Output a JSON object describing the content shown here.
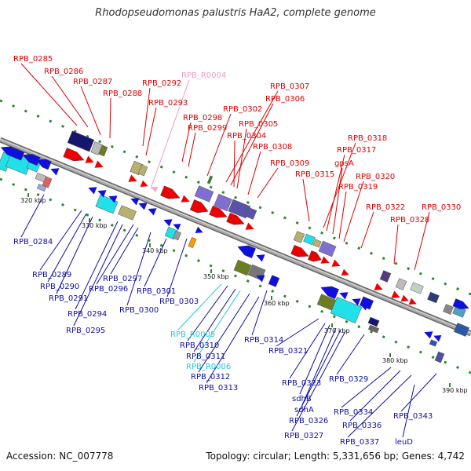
{
  "title": "Rhodopseudomonas palustris HaA2, complete genome",
  "footer": {
    "accession": "Accession: NC_007778",
    "stats": "Topology: circular; Length: 5,331,656 bp; Genes: 4,742"
  },
  "colors": {
    "upper_labels": "#dd0000",
    "lower_labels": "#1010a0",
    "rna_pink": "#f09ac8",
    "rna_cyan": "#22c8e0",
    "backbone": "#888888"
  },
  "ticks": [
    "320 kbp",
    "330 kbp",
    "340 kbp",
    "350 kbp",
    "360 kbp",
    "370 kbp",
    "380 kbp",
    "390 kbp"
  ],
  "upper_labels": [
    "RPB_0285",
    "RPB_0286",
    "RPB_0287",
    "RPB_0288",
    "RPB_0292",
    "RPB_R0004",
    "RPB_0293",
    "RPB_0298",
    "RPB_0299",
    "RPB_0302",
    "RPB_0307",
    "RPB_0306",
    "RPB_0305",
    "RPB_0304",
    "RPB_0308",
    "RPB_0309",
    "RPB_0315",
    "RPB_0318",
    "RPB_0317",
    "gpsA",
    "RPB_0320",
    "RPB_0319",
    "RPB_0322",
    "RPB_0328",
    "RPB_0330"
  ],
  "lower_labels": [
    "RPB_0284",
    "RPB_0289",
    "RPB_0290",
    "RPB_0291",
    "RPB_0294",
    "RPB_0295",
    "RPB_0297",
    "RPB_0296",
    "RPB_0301",
    "RPB_0300",
    "RPB_0303",
    "RPB_R0005",
    "RPB_0310",
    "RPB_0311",
    "RPB_R0006",
    "RPB_0312",
    "RPB_0313",
    "RPB_0314",
    "RPB_0321",
    "RPB_0323",
    "sdhB",
    "sdhA",
    "RPB_0326",
    "RPB_0327",
    "RPB_0329",
    "RPB_0334",
    "RPB_0336",
    "RPB_0337",
    "leuD",
    "RPB_0343"
  ]
}
